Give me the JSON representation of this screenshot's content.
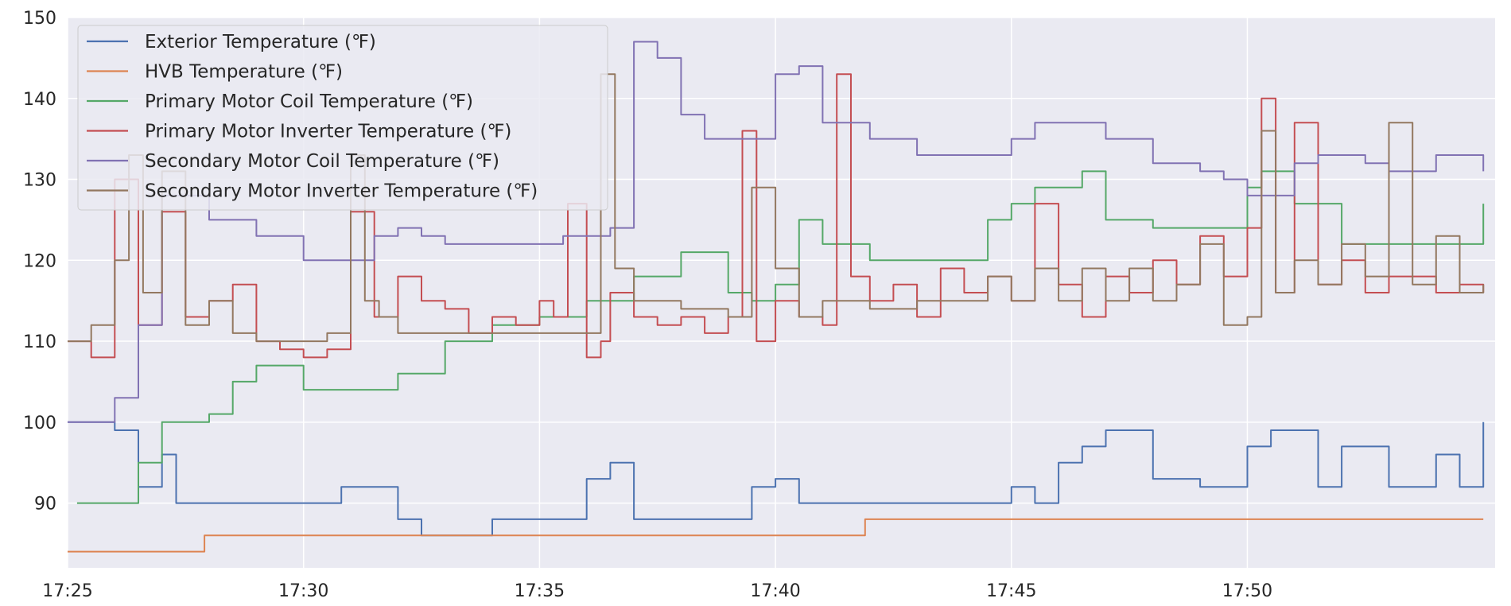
{
  "chart_data": {
    "type": "line",
    "x_unit": "time (HH:MM)",
    "xlim": [
      "17:25",
      "17:55:15"
    ],
    "ylim": [
      82,
      150
    ],
    "grid": true,
    "legend_position": "top-left",
    "x_tick_labels": [
      "17:25",
      "17:30",
      "17:35",
      "17:40",
      "17:45",
      "17:50"
    ],
    "y_tick_labels": [
      "90",
      "100",
      "110",
      "120",
      "130",
      "140",
      "150"
    ],
    "y_ticks": [
      90,
      100,
      110,
      120,
      130,
      140,
      150
    ],
    "series": [
      {
        "name": "Exterior Temperature (℉)",
        "color": "#4c72b0",
        "x": [
          "17:25",
          "17:26",
          "17:26.5",
          "17:27",
          "17:27.3",
          "17:28",
          "17:29",
          "17:30",
          "17:30.8",
          "17:31.3",
          "17:32",
          "17:32.5",
          "17:33",
          "17:34",
          "17:35",
          "17:36",
          "17:36.5",
          "17:37",
          "17:38",
          "17:39",
          "17:39.5",
          "17:40",
          "17:40.5",
          "17:41",
          "17:42",
          "17:43",
          "17:44",
          "17:45",
          "17:45.5",
          "17:46",
          "17:46.5",
          "17:47",
          "17:47.5",
          "17:48",
          "17:48.5",
          "17:49",
          "17:49.5",
          "17:50",
          "17:50.5",
          "17:51",
          "17:51.5",
          "17:52",
          "17:52.5",
          "17:53",
          "17:53.5",
          "17:54",
          "17:54.5",
          "17:55"
        ],
        "values": [
          100,
          99,
          92,
          96,
          90,
          90,
          90,
          90,
          92,
          92,
          88,
          86,
          86,
          88,
          88,
          93,
          95,
          88,
          88,
          88,
          92,
          93,
          90,
          90,
          90,
          90,
          90,
          92,
          90,
          95,
          97,
          99,
          99,
          93,
          93,
          92,
          92,
          97,
          99,
          99,
          92,
          97,
          97,
          92,
          92,
          96,
          92,
          100
        ]
      },
      {
        "name": "HVB Temperature (℉)",
        "color": "#dd8452",
        "x": [
          "17:25",
          "17:27.8",
          "17:27.9",
          "17:41.8",
          "17:41.9",
          "17:55"
        ],
        "values": [
          84,
          84,
          86,
          86,
          88,
          88
        ]
      },
      {
        "name": "Primary Motor Coil Temperature (℉)",
        "color": "#55a868",
        "x": [
          "17:25.2",
          "17:26",
          "17:26.5",
          "17:27",
          "17:28",
          "17:28.5",
          "17:29",
          "17:30",
          "17:31",
          "17:32",
          "17:33",
          "17:34",
          "17:35",
          "17:36",
          "17:37",
          "17:38",
          "17:39",
          "17:39.5",
          "17:40",
          "17:40.5",
          "17:41",
          "17:42",
          "17:43",
          "17:44",
          "17:44.5",
          "17:45",
          "17:45.5",
          "17:46",
          "17:46.5",
          "17:47",
          "17:48",
          "17:48.5",
          "17:49",
          "17:49.5",
          "17:50",
          "17:50.3",
          "17:50.6",
          "17:51",
          "17:52",
          "17:53",
          "17:54",
          "17:55"
        ],
        "values": [
          90,
          90,
          95,
          100,
          101,
          105,
          107,
          104,
          104,
          106,
          110,
          112,
          113,
          115,
          118,
          121,
          116,
          115,
          117,
          125,
          122,
          120,
          120,
          120,
          125,
          127,
          129,
          129,
          131,
          125,
          124,
          124,
          124,
          124,
          129,
          131,
          131,
          127,
          122,
          122,
          122,
          127
        ]
      },
      {
        "name": "Primary Motor Inverter Temperature (℉)",
        "color": "#c44e52",
        "x": [
          "17:25",
          "17:25.5",
          "17:26",
          "17:26.5",
          "17:27",
          "17:27.5",
          "17:28",
          "17:28.5",
          "17:29",
          "17:29.5",
          "17:30",
          "17:30.5",
          "17:31",
          "17:31.5",
          "17:32",
          "17:32.5",
          "17:33",
          "17:33.5",
          "17:34",
          "17:34.5",
          "17:35",
          "17:35.3",
          "17:35.6",
          "17:36",
          "17:36.3",
          "17:36.5",
          "17:37",
          "17:37.5",
          "17:38",
          "17:38.5",
          "17:39",
          "17:39.3",
          "17:39.6",
          "17:40",
          "17:40.5",
          "17:41",
          "17:41.3",
          "17:41.6",
          "17:42",
          "17:42.5",
          "17:43",
          "17:43.5",
          "17:44",
          "17:44.5",
          "17:45",
          "17:45.5",
          "17:46",
          "17:46.5",
          "17:47",
          "17:47.5",
          "17:48",
          "17:48.5",
          "17:49",
          "17:49.5",
          "17:50",
          "17:50.3",
          "17:50.6",
          "17:51",
          "17:51.5",
          "17:52",
          "17:52.5",
          "17:53",
          "17:53.5",
          "17:54",
          "17:54.5",
          "17:55"
        ],
        "values": [
          110,
          108,
          130,
          112,
          126,
          113,
          115,
          117,
          110,
          109,
          108,
          109,
          126,
          113,
          118,
          115,
          114,
          111,
          113,
          112,
          115,
          113,
          127,
          108,
          110,
          116,
          113,
          112,
          113,
          111,
          113,
          136,
          110,
          115,
          113,
          112,
          143,
          118,
          115,
          117,
          113,
          119,
          116,
          118,
          115,
          127,
          117,
          113,
          118,
          116,
          120,
          117,
          123,
          118,
          124,
          140,
          116,
          137,
          117,
          120,
          116,
          118,
          118,
          116,
          117,
          116
        ]
      },
      {
        "name": "Secondary Motor Coil Temperature (℉)",
        "color": "#8172b3",
        "x": [
          "17:25",
          "17:25.5",
          "17:26",
          "17:26.5",
          "17:27",
          "17:28",
          "17:29",
          "17:30",
          "17:31",
          "17:31.5",
          "17:32",
          "17:32.5",
          "17:33",
          "17:34",
          "17:35",
          "17:35.5",
          "17:36",
          "17:36.5",
          "17:37",
          "17:37.5",
          "17:38",
          "17:38.5",
          "17:39",
          "17:39.5",
          "17:40",
          "17:40.5",
          "17:41",
          "17:41.5",
          "17:42",
          "17:43",
          "17:44",
          "17:45",
          "17:45.5",
          "17:46",
          "17:47",
          "17:48",
          "17:49",
          "17:49.5",
          "17:50",
          "17:50.5",
          "17:51",
          "17:51.5",
          "17:52",
          "17:52.5",
          "17:53",
          "17:53.5",
          "17:54",
          "17:55"
        ],
        "values": [
          100,
          100,
          103,
          112,
          128,
          125,
          123,
          120,
          120,
          123,
          124,
          123,
          122,
          122,
          122,
          123,
          123,
          124,
          147,
          145,
          138,
          135,
          135,
          135,
          143,
          144,
          137,
          137,
          135,
          133,
          133,
          135,
          137,
          137,
          135,
          132,
          131,
          130,
          128,
          128,
          132,
          133,
          133,
          132,
          131,
          131,
          133,
          131
        ]
      },
      {
        "name": "Secondary Motor Inverter Temperature (℉)",
        "color": "#937860",
        "x": [
          "17:25",
          "17:25.5",
          "17:26",
          "17:26.3",
          "17:26.6",
          "17:27",
          "17:27.5",
          "17:28",
          "17:28.5",
          "17:29",
          "17:30",
          "17:30.5",
          "17:31",
          "17:31.3",
          "17:31.6",
          "17:32",
          "17:33",
          "17:34",
          "17:35",
          "17:36",
          "17:36.3",
          "17:36.6",
          "17:37",
          "17:38",
          "17:39",
          "17:39.5",
          "17:40",
          "17:40.5",
          "17:41",
          "17:42",
          "17:43",
          "17:44",
          "17:44.5",
          "17:45",
          "17:45.5",
          "17:46",
          "17:46.5",
          "17:47",
          "17:47.5",
          "17:48",
          "17:48.5",
          "17:49",
          "17:49.5",
          "17:50",
          "17:50.3",
          "17:50.6",
          "17:51",
          "17:51.5",
          "17:52",
          "17:52.5",
          "17:53",
          "17:53.5",
          "17:54",
          "17:54.5",
          "17:55"
        ],
        "values": [
          110,
          112,
          120,
          133,
          116,
          131,
          112,
          115,
          111,
          110,
          110,
          111,
          133,
          115,
          113,
          111,
          111,
          111,
          111,
          111,
          143,
          119,
          115,
          114,
          113,
          129,
          119,
          113,
          115,
          114,
          115,
          115,
          118,
          115,
          119,
          115,
          119,
          115,
          119,
          115,
          117,
          122,
          112,
          113,
          136,
          116,
          120,
          117,
          122,
          118,
          137,
          117,
          123,
          116,
          117
        ]
      }
    ]
  }
}
